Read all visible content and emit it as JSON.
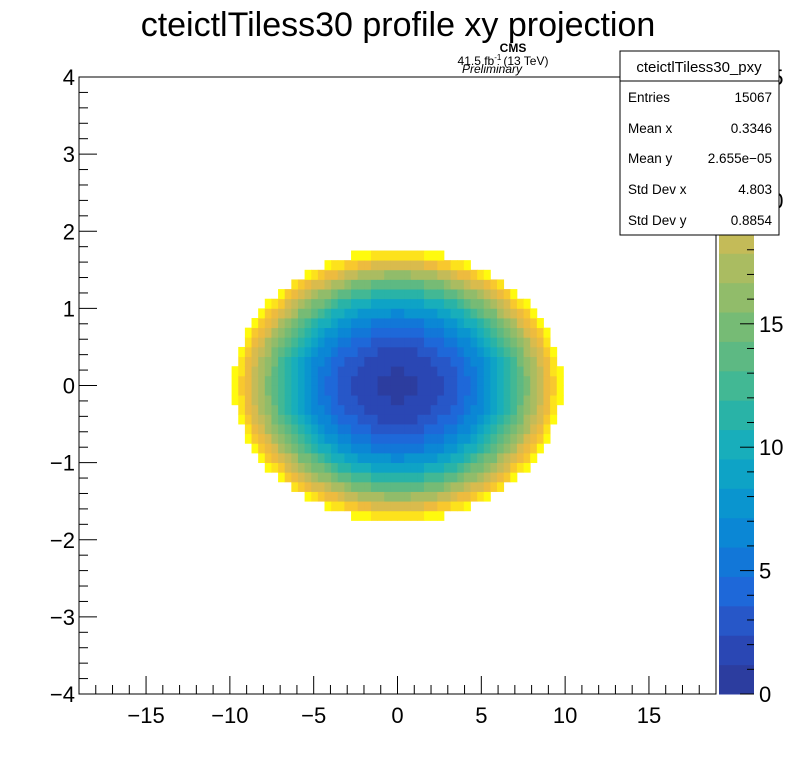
{
  "chart_data": {
    "type": "heatmap",
    "title": "cteictlTiless30 profile xy projection",
    "xlabel": "",
    "ylabel": "",
    "xlim": [
      -19,
      19
    ],
    "ylim": [
      -4,
      4
    ],
    "x_ticks": [
      "−15",
      "−10",
      "−5",
      "0",
      "5",
      "10",
      "15"
    ],
    "x_tick_values": [
      -15,
      -10,
      -5,
      0,
      5,
      10,
      15
    ],
    "y_ticks": [
      "−4",
      "−3",
      "−2",
      "−1",
      "0",
      "1",
      "2",
      "3",
      "4"
    ],
    "y_tick_values": [
      -4,
      -3,
      -2,
      -1,
      0,
      1,
      2,
      3,
      4
    ],
    "z_range": [
      0,
      25
    ],
    "z_ticks": [
      "0",
      "5",
      "10",
      "15",
      "20",
      "25"
    ],
    "z_tick_values": [
      0,
      5,
      10,
      15,
      20,
      25
    ],
    "shape": {
      "description_values": "elliptical distribution centered near (0,0), z increases radially",
      "center": [
        0,
        0
      ],
      "x_half_extent": 9.8,
      "y_half_extent": 1.75,
      "z_center": 1,
      "z_edge": 25
    },
    "grid": false,
    "annotations": {
      "experiment": "CMS",
      "lumi": "41.5 fb",
      "lumi_sup": "-1",
      "energy": "(13 TeV)",
      "status": "Preliminary"
    },
    "stats": {
      "name": "cteictlTiless30_pxy",
      "rows": [
        {
          "label": "Entries",
          "value": "15067"
        },
        {
          "label": "Mean x",
          "value": "0.3346"
        },
        {
          "label": "Mean y",
          "value": "2.655e−05"
        },
        {
          "label": "Std Dev x",
          "value": "4.803"
        },
        {
          "label": "Std Dev y",
          "value": "0.8854"
        }
      ]
    },
    "palette": [
      "#2c3d9f",
      "#2a47b4",
      "#2757c8",
      "#1e68d9",
      "#1277d8",
      "#0b87d5",
      "#0a95cf",
      "#0ea3c6",
      "#18aebb",
      "#29b3a7",
      "#42b894",
      "#5db983",
      "#76bb75",
      "#91bc6a",
      "#aabc61",
      "#c4bb58",
      "#d9bb4d",
      "#edbb3f",
      "#f8c82e",
      "#fde21c",
      "#fffa0e"
    ],
    "colors": {
      "background": "#ffffff",
      "axis": "#000000"
    }
  }
}
